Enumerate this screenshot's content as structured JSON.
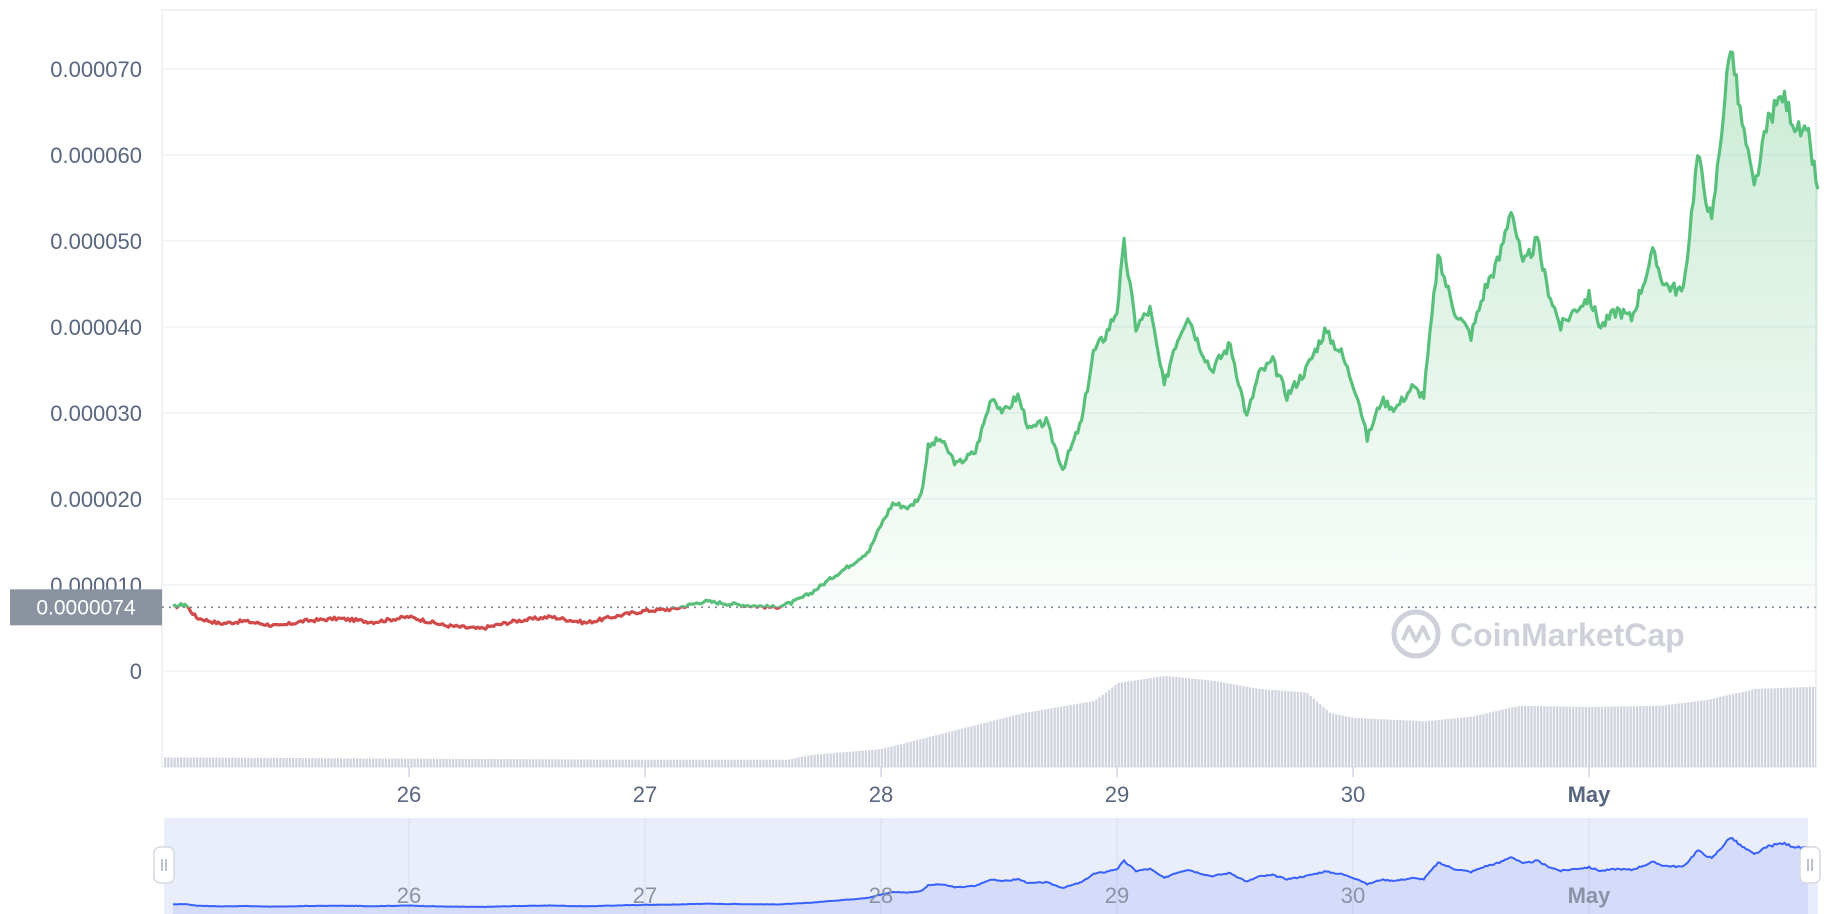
{
  "chart_data": {
    "type": "area",
    "ylim": [
      -1e-05,
      7.8e-05
    ],
    "yticks": [
      "0",
      "0.000010",
      "0.000020",
      "0.000030",
      "0.000040",
      "0.000050",
      "0.000060",
      "0.000070"
    ],
    "ytick_values": [
      0,
      1e-05,
      2e-05,
      3e-05,
      4e-05,
      5e-05,
      6e-05,
      7e-05
    ],
    "x_range": [
      "Apr 25 00:00",
      "May 1 23:30"
    ],
    "xticks": [
      {
        "label": "26",
        "day": 1,
        "bold": false
      },
      {
        "label": "27",
        "day": 2,
        "bold": false
      },
      {
        "label": "28",
        "day": 3,
        "bold": false
      },
      {
        "label": "29",
        "day": 4,
        "bold": false
      },
      {
        "label": "30",
        "day": 5,
        "bold": false
      },
      {
        "label": "May",
        "day": 6,
        "bold": true
      }
    ],
    "reference_price": 7.4e-06,
    "reference_label": "0.0000074",
    "up_color": "#16c784",
    "down_color": "#ea3943",
    "line_color_up": "#59c07c",
    "line_color_down": "#d04a4a",
    "volume_color": "#cfd3dd",
    "navigator_color": "#3861fb",
    "watermark": "CoinMarketCap",
    "price_series": [
      [
        0.0,
        7.4e-06
      ],
      [
        0.05,
        7.8e-06
      ],
      [
        0.1,
        6.2e-06
      ],
      [
        0.2,
        5.5e-06
      ],
      [
        0.3,
        5.8e-06
      ],
      [
        0.45,
        5.2e-06
      ],
      [
        0.55,
        5.8e-06
      ],
      [
        0.7,
        6.1e-06
      ],
      [
        0.85,
        5.7e-06
      ],
      [
        1.0,
        6.3e-06
      ],
      [
        1.15,
        5.3e-06
      ],
      [
        1.3,
        4.9e-06
      ],
      [
        1.45,
        5.8e-06
      ],
      [
        1.6,
        6.3e-06
      ],
      [
        1.75,
        5.6e-06
      ],
      [
        1.9,
        6.5e-06
      ],
      [
        2.0,
        7e-06
      ],
      [
        2.12,
        7.2e-06
      ],
      [
        2.25,
        8.1e-06
      ],
      [
        2.4,
        7.7e-06
      ],
      [
        2.55,
        7.4e-06
      ],
      [
        2.62,
        7.9e-06
      ],
      [
        2.7,
        9e-06
      ],
      [
        2.8,
        1.1e-05
      ],
      [
        2.88,
        1.25e-05
      ],
      [
        2.95,
        1.4e-05
      ],
      [
        3.0,
        1.7e-05
      ],
      [
        3.05,
        1.95e-05
      ],
      [
        3.12,
        1.9e-05
      ],
      [
        3.17,
        2.05e-05
      ],
      [
        3.2,
        2.6e-05
      ],
      [
        3.25,
        2.7e-05
      ],
      [
        3.32,
        2.4e-05
      ],
      [
        3.4,
        2.55e-05
      ],
      [
        3.47,
        3.2e-05
      ],
      [
        3.52,
        3e-05
      ],
      [
        3.58,
        3.2e-05
      ],
      [
        3.63,
        2.8e-05
      ],
      [
        3.7,
        2.9e-05
      ],
      [
        3.77,
        2.35e-05
      ],
      [
        3.85,
        2.9e-05
      ],
      [
        3.9,
        3.7e-05
      ],
      [
        3.95,
        3.9e-05
      ],
      [
        4.0,
        4.2e-05
      ],
      [
        4.03,
        4.95e-05
      ],
      [
        4.08,
        4e-05
      ],
      [
        4.14,
        4.2e-05
      ],
      [
        4.2,
        3.3e-05
      ],
      [
        4.24,
        3.75e-05
      ],
      [
        4.3,
        4.15e-05
      ],
      [
        4.34,
        3.85e-05
      ],
      [
        4.4,
        3.5e-05
      ],
      [
        4.48,
        3.8e-05
      ],
      [
        4.55,
        2.95e-05
      ],
      [
        4.6,
        3.45e-05
      ],
      [
        4.66,
        3.6e-05
      ],
      [
        4.72,
        3.2e-05
      ],
      [
        4.8,
        3.5e-05
      ],
      [
        4.88,
        3.95e-05
      ],
      [
        4.95,
        3.7e-05
      ],
      [
        5.02,
        3.2e-05
      ],
      [
        5.06,
        2.7e-05
      ],
      [
        5.12,
        3.15e-05
      ],
      [
        5.18,
        3.05e-05
      ],
      [
        5.25,
        3.3e-05
      ],
      [
        5.3,
        3.2e-05
      ],
      [
        5.36,
        4.8e-05
      ],
      [
        5.43,
        4.2e-05
      ],
      [
        5.5,
        3.9e-05
      ],
      [
        5.56,
        4.45e-05
      ],
      [
        5.62,
        4.8e-05
      ],
      [
        5.67,
        5.4e-05
      ],
      [
        5.72,
        4.7e-05
      ],
      [
        5.78,
        5e-05
      ],
      [
        5.82,
        4.5e-05
      ],
      [
        5.88,
        4e-05
      ],
      [
        5.94,
        4.2e-05
      ],
      [
        6.0,
        4.35e-05
      ],
      [
        6.05,
        4e-05
      ],
      [
        6.12,
        4.2e-05
      ],
      [
        6.18,
        4.1e-05
      ],
      [
        6.27,
        4.85e-05
      ],
      [
        6.32,
        4.5e-05
      ],
      [
        6.4,
        4.4e-05
      ],
      [
        6.46,
        6e-05
      ],
      [
        6.52,
        5.2e-05
      ],
      [
        6.6,
        7.3e-05
      ],
      [
        6.64,
        6.5e-05
      ],
      [
        6.7,
        5.6e-05
      ],
      [
        6.76,
        6.4e-05
      ],
      [
        6.82,
        6.7e-05
      ],
      [
        6.88,
        6.3e-05
      ],
      [
        6.93,
        6.2e-05
      ],
      [
        6.97,
        5.6e-05
      ]
    ],
    "volume_series": [
      [
        0.0,
        0.08
      ],
      [
        1.0,
        0.07
      ],
      [
        2.0,
        0.06
      ],
      [
        2.6,
        0.06
      ],
      [
        2.7,
        0.1
      ],
      [
        3.0,
        0.15
      ],
      [
        3.3,
        0.3
      ],
      [
        3.6,
        0.45
      ],
      [
        3.9,
        0.55
      ],
      [
        4.0,
        0.7
      ],
      [
        4.2,
        0.76
      ],
      [
        4.4,
        0.72
      ],
      [
        4.6,
        0.65
      ],
      [
        4.8,
        0.62
      ],
      [
        4.9,
        0.45
      ],
      [
        5.0,
        0.41
      ],
      [
        5.3,
        0.38
      ],
      [
        5.5,
        0.42
      ],
      [
        5.7,
        0.51
      ],
      [
        6.0,
        0.5
      ],
      [
        6.3,
        0.51
      ],
      [
        6.5,
        0.56
      ],
      [
        6.7,
        0.65
      ],
      [
        6.97,
        0.67
      ]
    ]
  }
}
